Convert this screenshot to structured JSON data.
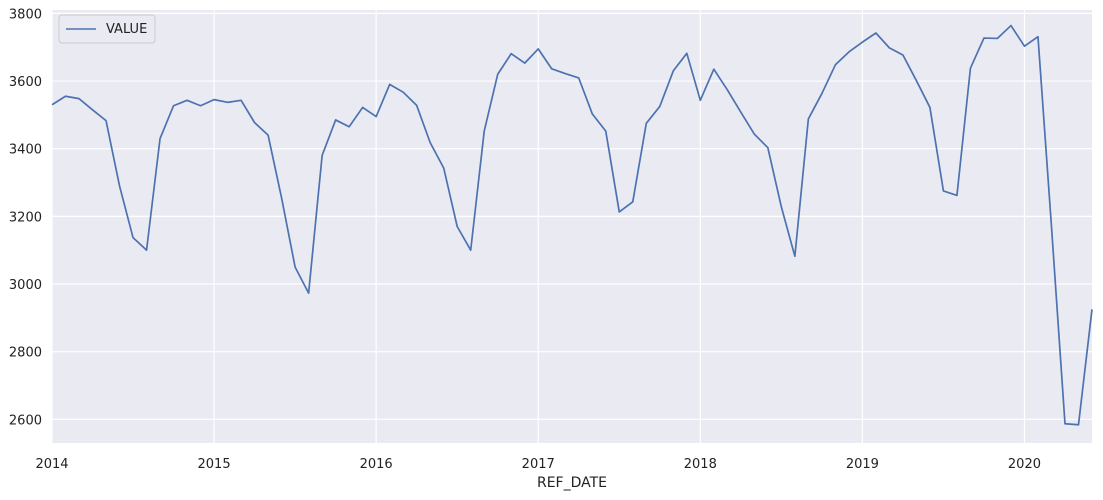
{
  "chart_data": {
    "type": "line",
    "title": "",
    "xlabel": "REF_DATE",
    "ylabel": "",
    "xlim": [
      "2014-01",
      "2020-06"
    ],
    "ylim": [
      2530,
      3810
    ],
    "x_ticks": [
      "2014",
      "2015",
      "2016",
      "2017",
      "2018",
      "2019",
      "2020"
    ],
    "y_ticks": [
      2600,
      2800,
      3000,
      3200,
      3400,
      3600,
      3800
    ],
    "grid": true,
    "legend": "top-left",
    "x": [
      "2014-01",
      "2014-02",
      "2014-03",
      "2014-04",
      "2014-05",
      "2014-06",
      "2014-07",
      "2014-08",
      "2014-09",
      "2014-10",
      "2014-11",
      "2014-12",
      "2015-01",
      "2015-02",
      "2015-03",
      "2015-04",
      "2015-05",
      "2015-06",
      "2015-07",
      "2015-08",
      "2015-09",
      "2015-10",
      "2015-11",
      "2015-12",
      "2016-01",
      "2016-02",
      "2016-03",
      "2016-04",
      "2016-05",
      "2016-06",
      "2016-07",
      "2016-08",
      "2016-09",
      "2016-10",
      "2016-11",
      "2016-12",
      "2017-01",
      "2017-02",
      "2017-03",
      "2017-04",
      "2017-05",
      "2017-06",
      "2017-07",
      "2017-08",
      "2017-09",
      "2017-10",
      "2017-11",
      "2017-12",
      "2018-01",
      "2018-02",
      "2018-03",
      "2018-04",
      "2018-05",
      "2018-06",
      "2018-07",
      "2018-08",
      "2018-09",
      "2018-10",
      "2018-11",
      "2018-12",
      "2019-01",
      "2019-02",
      "2019-03",
      "2019-04",
      "2019-05",
      "2019-06",
      "2019-07",
      "2019-08",
      "2019-09",
      "2019-10",
      "2019-11",
      "2019-12",
      "2020-01",
      "2020-02",
      "2020-03",
      "2020-04",
      "2020-05",
      "2020-06"
    ],
    "series": [
      {
        "name": "VALUE",
        "color": "#4c72b0",
        "values": [
          3530,
          3555,
          3548,
          3515,
          3483,
          3290,
          3137,
          3100,
          3430,
          3527,
          3543,
          3527,
          3545,
          3537,
          3543,
          3477,
          3440,
          3254,
          3050,
          2973,
          3380,
          3485,
          3465,
          3522,
          3495,
          3590,
          3567,
          3528,
          3418,
          3343,
          3170,
          3100,
          3452,
          3620,
          3681,
          3653,
          3695,
          3636,
          3622,
          3609,
          3503,
          3452,
          3213,
          3243,
          3475,
          3525,
          3630,
          3682,
          3543,
          3635,
          3574,
          3508,
          3443,
          3403,
          3228,
          3082,
          3488,
          3563,
          3648,
          3686,
          3715,
          3742,
          3698,
          3677,
          3601,
          3522,
          3275,
          3262,
          3638,
          3727,
          3726,
          3764,
          3703,
          3731,
          3170,
          2587,
          2584,
          2925
        ]
      }
    ]
  }
}
